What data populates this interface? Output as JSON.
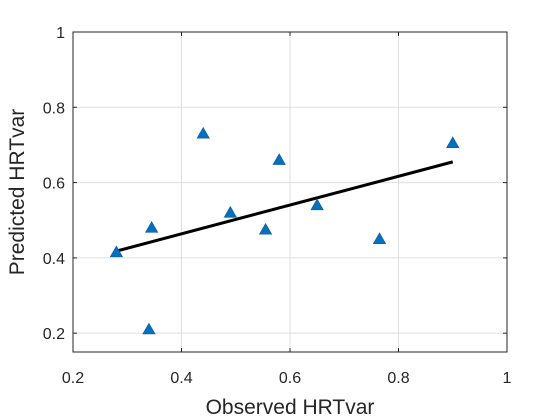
{
  "chart_data": {
    "type": "scatter",
    "title": "",
    "xlabel": "Observed HRTvar",
    "ylabel": "Predicted HRTvar",
    "xlim": [
      0.2,
      1.0
    ],
    "ylim": [
      0.15,
      1.0
    ],
    "xticks": [
      0.2,
      0.4,
      0.6,
      0.8,
      1.0
    ],
    "xtick_labels": [
      "0.2",
      "0.4",
      "0.6",
      "0.8",
      "1"
    ],
    "yticks": [
      0.2,
      0.4,
      0.6,
      0.8,
      1.0
    ],
    "ytick_labels": [
      "0.2",
      "0.4",
      "0.6",
      "0.8",
      "1"
    ],
    "grid": true,
    "marker": "triangle",
    "marker_color": "#0072BD",
    "line_color": "#000000",
    "points": [
      {
        "x": 0.28,
        "y": 0.415
      },
      {
        "x": 0.34,
        "y": 0.21
      },
      {
        "x": 0.345,
        "y": 0.48
      },
      {
        "x": 0.44,
        "y": 0.73
      },
      {
        "x": 0.49,
        "y": 0.52
      },
      {
        "x": 0.555,
        "y": 0.475
      },
      {
        "x": 0.58,
        "y": 0.66
      },
      {
        "x": 0.65,
        "y": 0.54
      },
      {
        "x": 0.765,
        "y": 0.45
      },
      {
        "x": 0.9,
        "y": 0.705
      }
    ],
    "fit_line": {
      "x": [
        0.28,
        0.9
      ],
      "y": [
        0.418,
        0.655
      ]
    }
  }
}
